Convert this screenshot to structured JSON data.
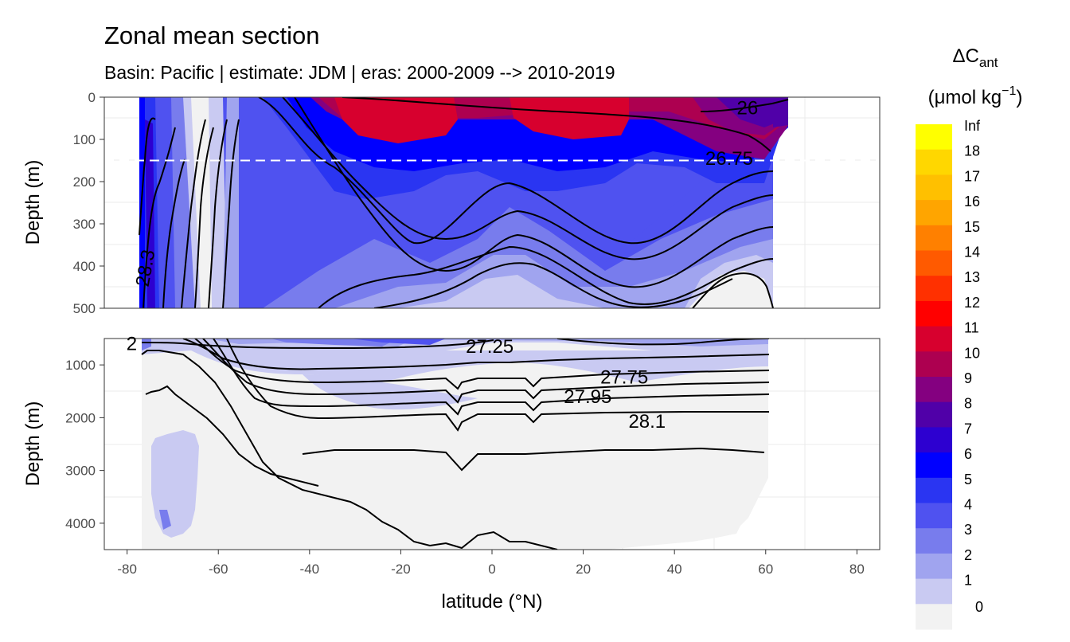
{
  "chart_data": {
    "type": "heatmap",
    "title": "Zonal mean section",
    "subtitle": "Basin: Pacific | estimate: JDM  | eras: 2000-2009 --> 2010-2019",
    "xlabel": "latitude (°N)",
    "ylabel": "Depth (m)",
    "x_ticks": [
      "-80",
      "-60",
      "-40",
      "-20",
      "0",
      "20",
      "40",
      "60",
      "80"
    ],
    "xlim": [
      -85,
      85
    ],
    "panels": [
      {
        "name": "upper",
        "ylim": [
          0,
          500
        ],
        "y_ticks": [
          "0",
          "100",
          "200",
          "300",
          "400",
          "500"
        ]
      },
      {
        "name": "lower",
        "ylim": [
          500,
          4500
        ],
        "y_ticks": [
          "1000",
          "2000",
          "3000",
          "4000"
        ]
      }
    ],
    "reference_line_depth": 150,
    "isopycnal_labels": [
      {
        "text": "26",
        "lat": 56,
        "depth": 25
      },
      {
        "text": "26.75",
        "lat": 52,
        "depth": 145
      },
      {
        "text": "28.3",
        "lat": -76,
        "depth": 405
      },
      {
        "text": "27.25",
        "lat": -0.5,
        "depth": 650
      },
      {
        "text": "27.75",
        "lat": 29,
        "depth": 1230
      },
      {
        "text": "27.95",
        "lat": 21,
        "depth": 1600
      },
      {
        "text": "28.1",
        "lat": 34,
        "depth": 2070
      },
      {
        "text": "2",
        "lat": -79,
        "depth": 600
      }
    ],
    "legend": {
      "title_main": "ΔC",
      "title_sub": "ant",
      "unit_open": "(μmol kg",
      "unit_sup": "−1",
      "unit_close": ")",
      "placement": "right",
      "levels": [
        {
          "label": "Inf",
          "color": "#ffff00"
        },
        {
          "label": "18",
          "color": "#ffd700"
        },
        {
          "label": "17",
          "color": "#ffc000"
        },
        {
          "label": "16",
          "color": "#ffa500"
        },
        {
          "label": "15",
          "color": "#ff8000"
        },
        {
          "label": "14",
          "color": "#ff5a00"
        },
        {
          "label": "13",
          "color": "#ff3000"
        },
        {
          "label": "12",
          "color": "#ff0000"
        },
        {
          "label": "11",
          "color": "#d7002e"
        },
        {
          "label": "10",
          "color": "#ad0050"
        },
        {
          "label": "9",
          "color": "#840080"
        },
        {
          "label": "8",
          "color": "#5000a8"
        },
        {
          "label": "7",
          "color": "#2d00d0"
        },
        {
          "label": "6",
          "color": "#0000ff"
        },
        {
          "label": "5",
          "color": "#2a35f2"
        },
        {
          "label": "4",
          "color": "#4f52f0"
        },
        {
          "label": "3",
          "color": "#787ced"
        },
        {
          "label": "2",
          "color": "#a0a4ef"
        },
        {
          "label": "1",
          "color": "#c9caf2"
        },
        {
          "label": "0",
          "color": "#f2f2f2"
        }
      ]
    }
  }
}
